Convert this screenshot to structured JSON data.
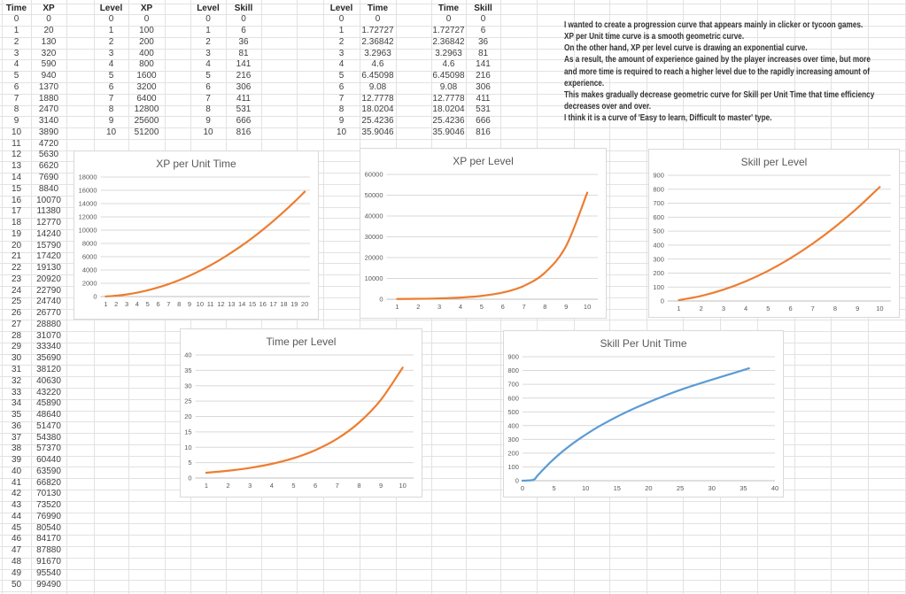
{
  "sheet": {
    "tables": [
      {
        "name": "time-xp",
        "headers": [
          "Time",
          "XP"
        ],
        "rows": [
          [
            0,
            0
          ],
          [
            1,
            20
          ],
          [
            2,
            130
          ],
          [
            3,
            320
          ],
          [
            4,
            590
          ],
          [
            5,
            940
          ],
          [
            6,
            1370
          ],
          [
            7,
            1880
          ],
          [
            8,
            2470
          ],
          [
            9,
            3140
          ],
          [
            10,
            3890
          ],
          [
            11,
            4720
          ],
          [
            12,
            5630
          ],
          [
            13,
            6620
          ],
          [
            14,
            7690
          ],
          [
            15,
            8840
          ],
          [
            16,
            10070
          ],
          [
            17,
            11380
          ],
          [
            18,
            12770
          ],
          [
            19,
            14240
          ],
          [
            20,
            15790
          ],
          [
            21,
            17420
          ],
          [
            22,
            19130
          ],
          [
            23,
            20920
          ],
          [
            24,
            22790
          ],
          [
            25,
            24740
          ],
          [
            26,
            26770
          ],
          [
            27,
            28880
          ],
          [
            28,
            31070
          ],
          [
            29,
            33340
          ],
          [
            30,
            35690
          ],
          [
            31,
            38120
          ],
          [
            32,
            40630
          ],
          [
            33,
            43220
          ],
          [
            34,
            45890
          ],
          [
            35,
            48640
          ],
          [
            36,
            51470
          ],
          [
            37,
            54380
          ],
          [
            38,
            57370
          ],
          [
            39,
            60440
          ],
          [
            40,
            63590
          ],
          [
            41,
            66820
          ],
          [
            42,
            70130
          ],
          [
            43,
            73520
          ],
          [
            44,
            76990
          ],
          [
            45,
            80540
          ],
          [
            46,
            84170
          ],
          [
            47,
            87880
          ],
          [
            48,
            91670
          ],
          [
            49,
            95540
          ],
          [
            50,
            99490
          ]
        ]
      },
      {
        "name": "level-xp",
        "headers": [
          "Level",
          "XP"
        ],
        "rows": [
          [
            0,
            0
          ],
          [
            1,
            100
          ],
          [
            2,
            200
          ],
          [
            3,
            400
          ],
          [
            4,
            800
          ],
          [
            5,
            1600
          ],
          [
            6,
            3200
          ],
          [
            7,
            6400
          ],
          [
            8,
            12800
          ],
          [
            9,
            25600
          ],
          [
            10,
            51200
          ]
        ]
      },
      {
        "name": "level-skill",
        "headers": [
          "Level",
          "Skill"
        ],
        "rows": [
          [
            0,
            0
          ],
          [
            1,
            6
          ],
          [
            2,
            36
          ],
          [
            3,
            81
          ],
          [
            4,
            141
          ],
          [
            5,
            216
          ],
          [
            6,
            306
          ],
          [
            7,
            411
          ],
          [
            8,
            531
          ],
          [
            9,
            666
          ],
          [
            10,
            816
          ]
        ]
      },
      {
        "name": "level-time",
        "headers": [
          "Level",
          "Time"
        ],
        "rows": [
          [
            0,
            0
          ],
          [
            1,
            1.72727
          ],
          [
            2,
            2.36842
          ],
          [
            3,
            3.2963
          ],
          [
            4,
            4.6
          ],
          [
            5,
            6.45098
          ],
          [
            6,
            9.08
          ],
          [
            7,
            12.7778
          ],
          [
            8,
            18.0204
          ],
          [
            9,
            25.4236
          ],
          [
            10,
            35.9046
          ]
        ]
      },
      {
        "name": "time-skill",
        "headers": [
          "Time",
          "Skill"
        ],
        "rows": [
          [
            0,
            0
          ],
          [
            1.72727,
            6
          ],
          [
            2.36842,
            36
          ],
          [
            3.2963,
            81
          ],
          [
            4.6,
            141
          ],
          [
            6.45098,
            216
          ],
          [
            9.08,
            306
          ],
          [
            12.7778,
            411
          ],
          [
            18.0204,
            531
          ],
          [
            25.4236,
            666
          ],
          [
            35.9046,
            816
          ]
        ]
      }
    ],
    "notes": {
      "lines": [
        "I wanted to create a progression curve that appears mainly in clicker or tycoon games.",
        "XP per Unit time curve is a smooth geometric curve.",
        "On the other hand, XP per level curve is drawing an exponential curve.",
        "As a result, the amount of experience gained by the player increases over time, but more",
        "and more time is required to reach a higher level due to the rapidly increasing amount of",
        "experience.",
        "This makes gradually decrease geometric curve for Skill per Unit Time that time efficiency",
        "decreases over and over.",
        "I think it is a curve of 'Easy to learn, Difficult to master' type."
      ]
    }
  },
  "chart_data": [
    {
      "type": "line",
      "title": "XP per Unit Time",
      "categories": [
        1,
        2,
        3,
        4,
        5,
        6,
        7,
        8,
        9,
        10,
        11,
        12,
        13,
        14,
        15,
        16,
        17,
        18,
        19,
        20
      ],
      "values": [
        20,
        130,
        320,
        590,
        940,
        1370,
        1880,
        2470,
        3140,
        3890,
        4720,
        5630,
        6620,
        7690,
        8840,
        10070,
        11380,
        12770,
        14240,
        15790
      ],
      "xlabel": "",
      "ylabel": "",
      "ylim": [
        0,
        18000
      ],
      "ystep": 2000,
      "grid": true,
      "legend": "none",
      "color": "#ED7D31"
    },
    {
      "type": "line",
      "title": "XP per Level",
      "categories": [
        1,
        2,
        3,
        4,
        5,
        6,
        7,
        8,
        9,
        10
      ],
      "values": [
        100,
        200,
        400,
        800,
        1600,
        3200,
        6400,
        12800,
        25600,
        51200
      ],
      "xlabel": "",
      "ylabel": "",
      "ylim": [
        0,
        60000
      ],
      "ystep": 10000,
      "grid": true,
      "legend": "none",
      "color": "#ED7D31"
    },
    {
      "type": "line",
      "title": "Skill per Level",
      "categories": [
        1,
        2,
        3,
        4,
        5,
        6,
        7,
        8,
        9,
        10
      ],
      "values": [
        6,
        36,
        81,
        141,
        216,
        306,
        411,
        531,
        666,
        816
      ],
      "xlabel": "",
      "ylabel": "",
      "ylim": [
        0,
        900
      ],
      "ystep": 100,
      "grid": true,
      "legend": "none",
      "color": "#ED7D31"
    },
    {
      "type": "line",
      "title": "Time per Level",
      "categories": [
        1,
        2,
        3,
        4,
        5,
        6,
        7,
        8,
        9,
        10
      ],
      "values": [
        1.72727,
        2.36842,
        3.2963,
        4.6,
        6.45098,
        9.08,
        12.7778,
        18.0204,
        25.4236,
        35.9046
      ],
      "xlabel": "",
      "ylabel": "",
      "ylim": [
        0,
        40
      ],
      "ystep": 5,
      "grid": true,
      "legend": "none",
      "color": "#ED7D31"
    },
    {
      "type": "scatter",
      "title": "Skill Per Unit Time",
      "x": [
        0,
        1.72727,
        2.36842,
        3.2963,
        4.6,
        6.45098,
        9.08,
        12.7778,
        18.0204,
        25.4236,
        35.9046
      ],
      "y": [
        0,
        6,
        36,
        81,
        141,
        216,
        306,
        411,
        531,
        666,
        816
      ],
      "xlabel": "",
      "ylabel": "",
      "xlim": [
        0,
        40
      ],
      "xstep": 5,
      "ylim": [
        0,
        900
      ],
      "ystep": 100,
      "grid": true,
      "legend": "none",
      "color": "#5B9BD5"
    }
  ],
  "colors": {
    "series_orange": "#ED7D31",
    "series_blue": "#5B9BD5",
    "chart_text": "#595959",
    "chart_gridline": "#D9D9D9",
    "chart_axis": "#BFBFBF",
    "sheet_gridline": "#E2E2E2"
  }
}
